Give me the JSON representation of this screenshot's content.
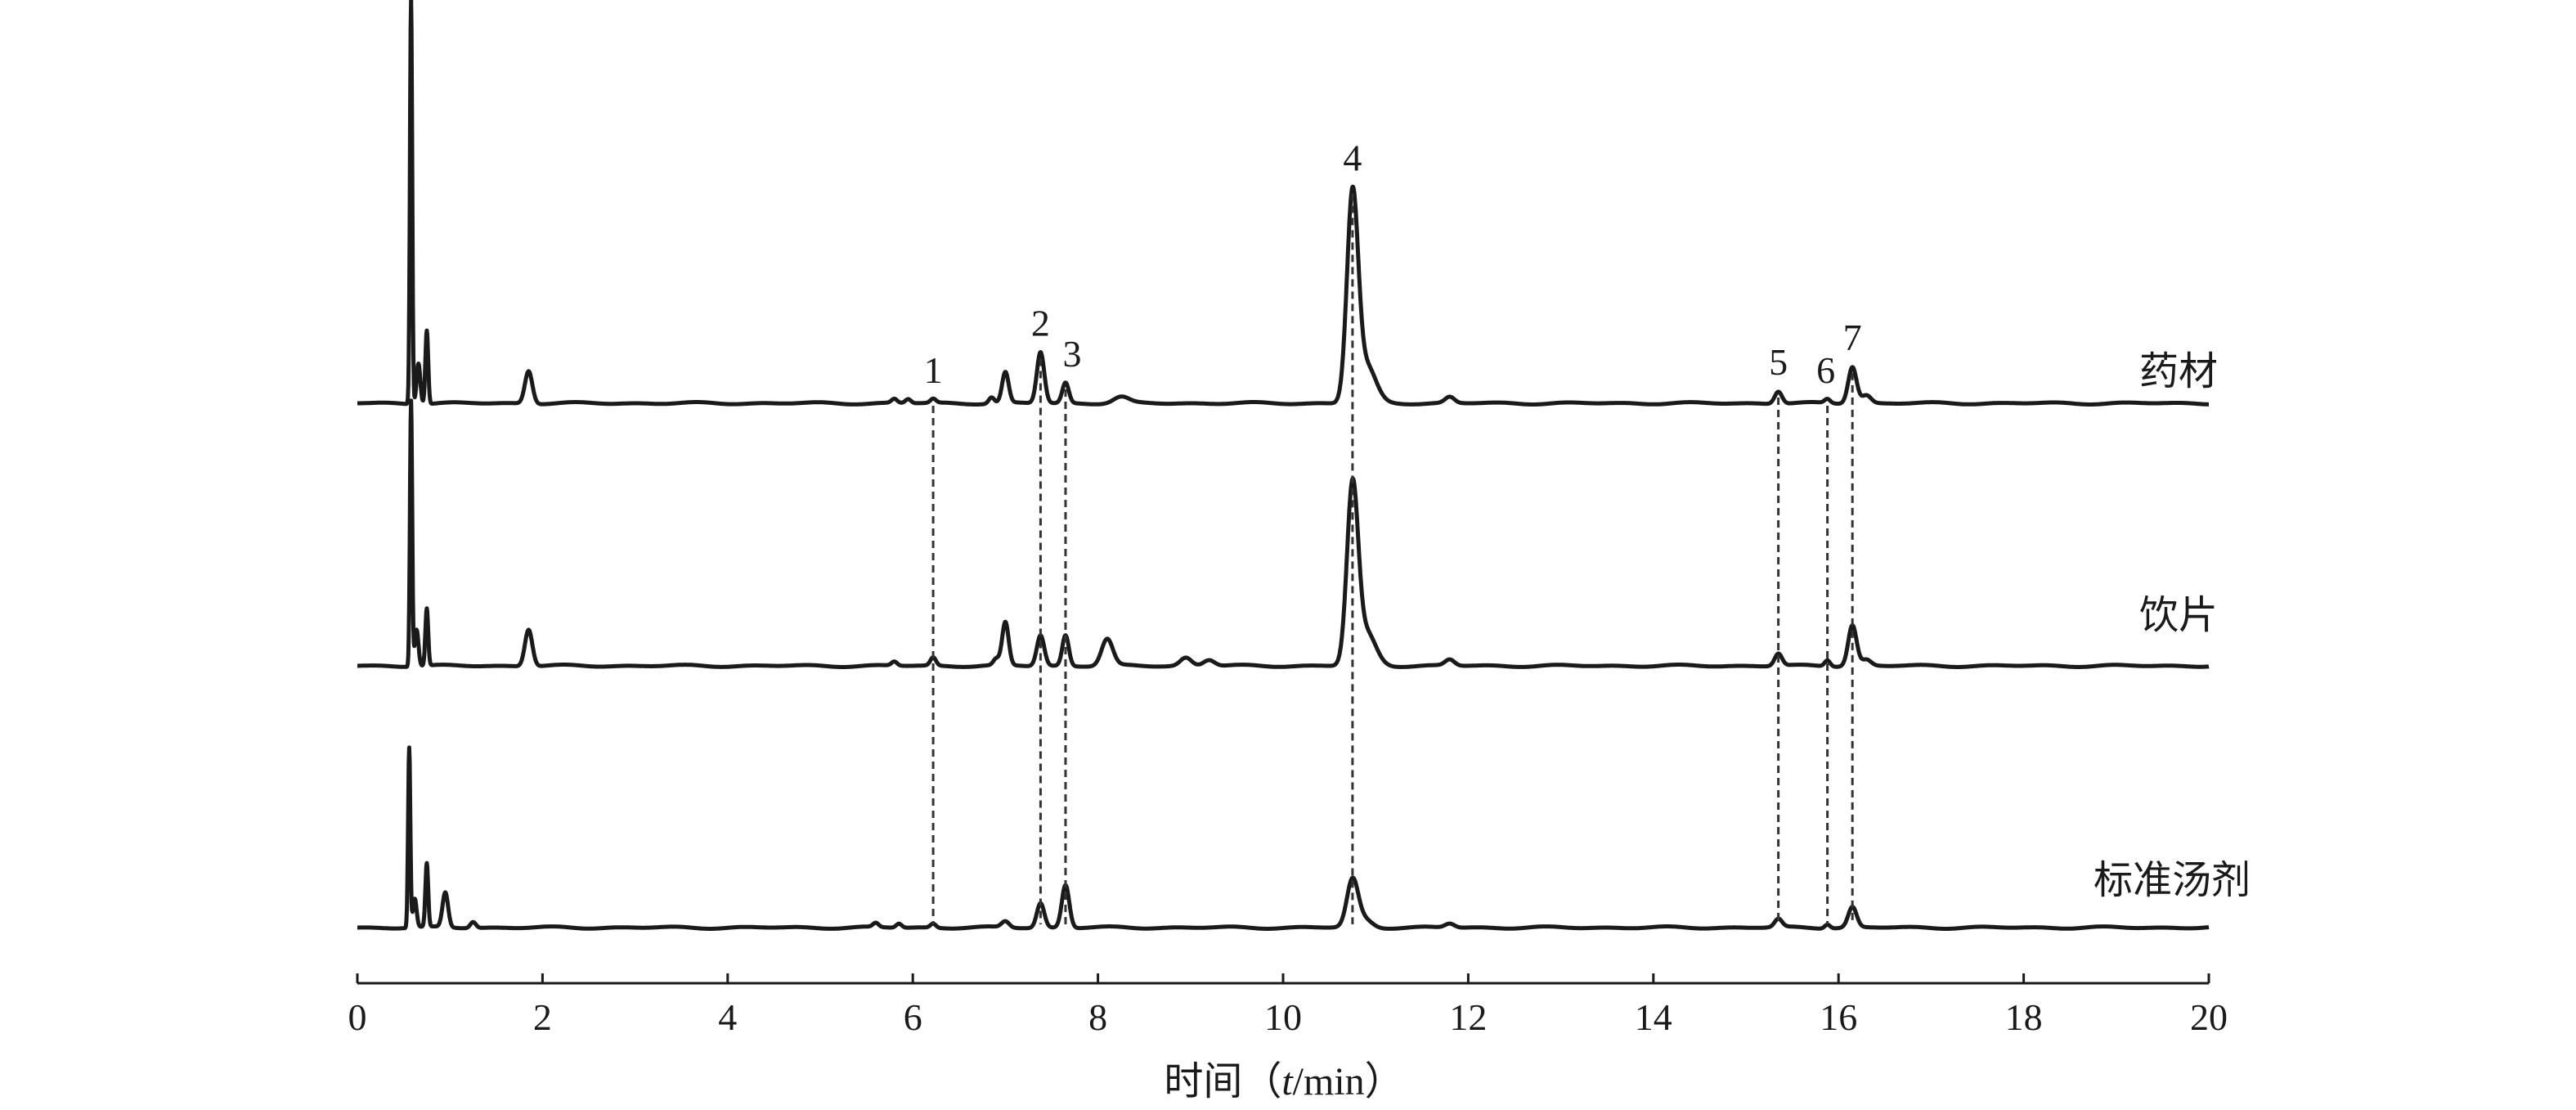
{
  "chart_data": {
    "type": "line",
    "title": "",
    "xlabel_prefix": "时间（",
    "xlabel_var": "t",
    "xlabel_unit": "/min）",
    "ylabel": "",
    "xlim": [
      0,
      20
    ],
    "xticks": [
      0,
      2,
      4,
      6,
      8,
      10,
      12,
      14,
      16,
      18,
      20
    ],
    "grid": false,
    "line_color": "#1a1a1a",
    "marker_lines": "dashed",
    "peak_markers": [
      {
        "label": "1",
        "rt": 6.22
      },
      {
        "label": "2",
        "rt": 7.38
      },
      {
        "label": "3",
        "rt": 7.65
      },
      {
        "label": "4",
        "rt": 10.75
      },
      {
        "label": "5",
        "rt": 15.35
      },
      {
        "label": "6",
        "rt": 15.88
      },
      {
        "label": "7",
        "rt": 16.15
      }
    ],
    "series": [
      {
        "name": "药材",
        "peaks": [
          [
            0.58,
            200,
            0.012
          ],
          [
            0.66,
            20,
            0.02
          ],
          [
            0.75,
            36,
            0.015
          ],
          [
            1.85,
            16,
            0.04
          ],
          [
            5.8,
            2,
            0.03
          ],
          [
            5.95,
            2,
            0.03
          ],
          [
            6.22,
            2,
            0.03
          ],
          [
            6.85,
            3,
            0.03
          ],
          [
            7.0,
            15,
            0.035
          ],
          [
            7.38,
            25,
            0.04
          ],
          [
            7.65,
            10,
            0.035
          ],
          [
            8.25,
            3,
            0.08
          ],
          [
            10.75,
            100,
            0.06
          ],
          [
            10.9,
            18,
            0.1
          ],
          [
            11.8,
            3,
            0.05
          ],
          [
            15.35,
            6,
            0.04
          ],
          [
            15.88,
            2,
            0.03
          ],
          [
            16.15,
            18,
            0.045
          ],
          [
            16.3,
            4,
            0.05
          ]
        ]
      },
      {
        "name": "饮片",
        "peaks": [
          [
            0.58,
            130,
            0.012
          ],
          [
            0.64,
            18,
            0.02
          ],
          [
            0.75,
            28,
            0.015
          ],
          [
            1.85,
            18,
            0.04
          ],
          [
            5.8,
            2,
            0.03
          ],
          [
            6.22,
            4,
            0.03
          ],
          [
            6.9,
            3,
            0.03
          ],
          [
            7.0,
            21,
            0.035
          ],
          [
            7.38,
            15,
            0.04
          ],
          [
            7.65,
            15,
            0.035
          ],
          [
            8.1,
            13,
            0.06
          ],
          [
            8.95,
            4,
            0.06
          ],
          [
            9.2,
            3,
            0.06
          ],
          [
            10.75,
            86,
            0.06
          ],
          [
            10.9,
            16,
            0.1
          ],
          [
            11.8,
            3,
            0.05
          ],
          [
            15.35,
            6,
            0.04
          ],
          [
            15.88,
            3,
            0.03
          ],
          [
            16.15,
            20,
            0.045
          ],
          [
            16.3,
            3,
            0.05
          ]
        ]
      },
      {
        "name": "标准汤剂",
        "peaks": [
          [
            0.56,
            88,
            0.012
          ],
          [
            0.62,
            14,
            0.02
          ],
          [
            0.75,
            31,
            0.015
          ],
          [
            0.95,
            17,
            0.03
          ],
          [
            1.25,
            3,
            0.03
          ],
          [
            5.6,
            2,
            0.03
          ],
          [
            5.85,
            2,
            0.03
          ],
          [
            6.22,
            2,
            0.03
          ],
          [
            7.0,
            3,
            0.04
          ],
          [
            7.38,
            12,
            0.04
          ],
          [
            7.65,
            21,
            0.04
          ],
          [
            10.75,
            23,
            0.06
          ],
          [
            10.88,
            4,
            0.08
          ],
          [
            11.8,
            2,
            0.05
          ],
          [
            15.35,
            4,
            0.04
          ],
          [
            15.88,
            2,
            0.03
          ],
          [
            16.15,
            10,
            0.045
          ]
        ]
      }
    ]
  }
}
